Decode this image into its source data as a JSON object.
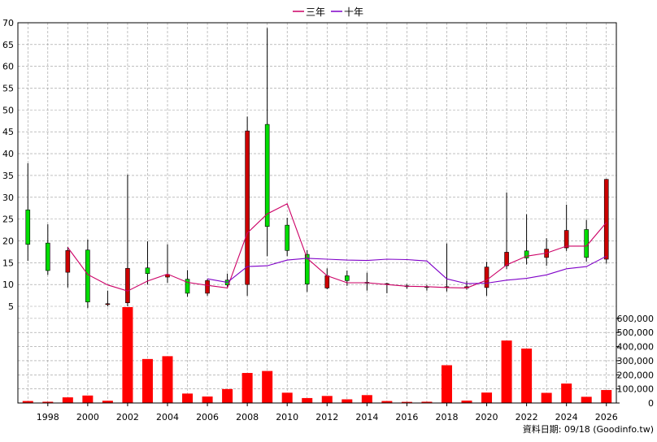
{
  "legend": {
    "ma3_label": "三年",
    "ma10_label": "十年",
    "ma3_color": "#cc0066",
    "ma10_color": "#7f00c8"
  },
  "footer": {
    "source_text": "資料日期: 09/18 (Goodinfo.tw)"
  },
  "colors": {
    "up": "#00dd00",
    "down": "#cc0000",
    "volume": "#ff0000",
    "grid": "#999999",
    "wick": "#000000"
  },
  "chart_data": [
    {
      "type": "candlestick",
      "ylim": [
        5,
        70
      ],
      "yticks": [
        5,
        10,
        15,
        20,
        25,
        30,
        35,
        40,
        45,
        50,
        55,
        60,
        65,
        70
      ],
      "xlim": [
        1996.5,
        2026.5
      ],
      "xticks": [
        1998,
        2000,
        2002,
        2004,
        2006,
        2008,
        2010,
        2012,
        2014,
        2016,
        2018,
        2020,
        2022,
        2024,
        2026
      ],
      "candles": [
        {
          "x": 1997,
          "open": 19.2,
          "high": 37.8,
          "low": 15.4,
          "close": 27.1
        },
        {
          "x": 1998,
          "open": 13.2,
          "high": 23.8,
          "low": 12.2,
          "close": 19.5
        },
        {
          "x": 1999,
          "open": 17.8,
          "high": 18.6,
          "low": 9.3,
          "close": 12.8
        },
        {
          "x": 2000,
          "open": 6.0,
          "high": 20.3,
          "low": 4.6,
          "close": 17.9
        },
        {
          "x": 2001,
          "open": 5.6,
          "high": 8.6,
          "low": 5.0,
          "close": 5.4
        },
        {
          "x": 2002,
          "open": 13.7,
          "high": 35.2,
          "low": 5.0,
          "close": 5.8
        },
        {
          "x": 2003,
          "open": 12.5,
          "high": 19.9,
          "low": 10.0,
          "close": 13.8
        },
        {
          "x": 2004,
          "open": 12.3,
          "high": 19.2,
          "low": 10.4,
          "close": 11.7
        },
        {
          "x": 2005,
          "open": 8.0,
          "high": 13.3,
          "low": 7.2,
          "close": 11.2
        },
        {
          "x": 2006,
          "open": 10.9,
          "high": 11.3,
          "low": 7.4,
          "close": 8.0
        },
        {
          "x": 2007,
          "open": 9.9,
          "high": 12.5,
          "low": 9.4,
          "close": 11.0
        },
        {
          "x": 2008,
          "open": 45.2,
          "high": 48.5,
          "low": 7.4,
          "close": 10.0
        },
        {
          "x": 2009,
          "open": 23.3,
          "high": 68.8,
          "low": 16.5,
          "close": 46.7
        },
        {
          "x": 2010,
          "open": 17.8,
          "high": 25.3,
          "low": 16.5,
          "close": 23.6
        },
        {
          "x": 2011,
          "open": 10.1,
          "high": 17.9,
          "low": 8.3,
          "close": 16.9
        },
        {
          "x": 2012,
          "open": 12.0,
          "high": 13.7,
          "low": 8.9,
          "close": 9.2
        },
        {
          "x": 2013,
          "open": 10.9,
          "high": 13.2,
          "low": 9.7,
          "close": 12.0
        },
        {
          "x": 2014,
          "open": 10.5,
          "high": 12.7,
          "low": 8.6,
          "close": 10.3
        },
        {
          "x": 2015,
          "open": 10.2,
          "high": 10.4,
          "low": 8.0,
          "close": 10.0
        },
        {
          "x": 2016,
          "open": 9.5,
          "high": 10.1,
          "low": 9.0,
          "close": 9.7
        },
        {
          "x": 2017,
          "open": 9.4,
          "high": 9.9,
          "low": 8.6,
          "close": 9.5
        },
        {
          "x": 2018,
          "open": 9.5,
          "high": 19.4,
          "low": 8.4,
          "close": 9.3
        },
        {
          "x": 2019,
          "open": 9.5,
          "high": 10.8,
          "low": 8.8,
          "close": 9.2
        },
        {
          "x": 2020,
          "open": 14.0,
          "high": 15.2,
          "low": 7.4,
          "close": 9.3
        },
        {
          "x": 2021,
          "open": 17.4,
          "high": 31.1,
          "low": 13.5,
          "close": 14.3
        },
        {
          "x": 2022,
          "open": 16.1,
          "high": 26.1,
          "low": 14.6,
          "close": 17.7
        },
        {
          "x": 2023,
          "open": 18.1,
          "high": 20.6,
          "low": 14.3,
          "close": 16.2
        },
        {
          "x": 2024,
          "open": 22.4,
          "high": 28.3,
          "low": 17.7,
          "close": 18.4
        },
        {
          "x": 2025,
          "open": 16.2,
          "high": 24.8,
          "low": 15.2,
          "close": 22.6
        },
        {
          "x": 2026,
          "open": 34.1,
          "high": 34.2,
          "low": 14.8,
          "close": 15.8
        }
      ],
      "series": [
        {
          "name": "三年",
          "x": [
            1999,
            2000,
            2001,
            2002,
            2003,
            2004,
            2005,
            2006,
            2007,
            2008,
            2009,
            2010,
            2011,
            2012,
            2013,
            2014,
            2015,
            2016,
            2017,
            2018,
            2019,
            2020,
            2021,
            2022,
            2023,
            2024,
            2025,
            2026
          ],
          "values": [
            18.5,
            12.3,
            9.9,
            8.5,
            10.8,
            12.4,
            10.5,
            9.8,
            9.2,
            21.8,
            26.2,
            28.5,
            16.0,
            12.0,
            10.4,
            10.4,
            10.0,
            9.6,
            9.5,
            9.3,
            9.2,
            11.0,
            14.5,
            16.5,
            17.2,
            18.8,
            18.8,
            24.2
          ]
        },
        {
          "name": "十年",
          "x": [
            2006,
            2007,
            2008,
            2009,
            2010,
            2011,
            2012,
            2013,
            2014,
            2015,
            2016,
            2017,
            2018,
            2019,
            2020,
            2021,
            2022,
            2023,
            2024,
            2025,
            2026
          ],
          "values": [
            11.3,
            10.5,
            14.1,
            14.3,
            15.6,
            16.0,
            15.8,
            15.6,
            15.5,
            15.8,
            15.7,
            15.4,
            11.3,
            10.2,
            10.3,
            11.0,
            11.4,
            12.2,
            13.6,
            14.1,
            16.5
          ]
        }
      ]
    },
    {
      "type": "bar",
      "ylim": [
        0,
        680000
      ],
      "yticks": [
        0,
        100000,
        200000,
        300000,
        400000,
        500000,
        600000
      ],
      "ytick_labels": [
        "0",
        "100,000",
        "200,000",
        "300,000",
        "400,000",
        "500,000",
        "600,000"
      ],
      "x": [
        1997,
        1998,
        1999,
        2000,
        2001,
        2002,
        2003,
        2004,
        2005,
        2006,
        2007,
        2008,
        2009,
        2010,
        2011,
        2012,
        2013,
        2014,
        2015,
        2016,
        2017,
        2018,
        2019,
        2020,
        2021,
        2022,
        2023,
        2024,
        2025,
        2026
      ],
      "values": [
        14000,
        9000,
        40000,
        53000,
        16000,
        680000,
        312000,
        332000,
        67000,
        46000,
        99000,
        213000,
        227000,
        73000,
        35000,
        50000,
        26000,
        56000,
        14000,
        8000,
        9000,
        268000,
        17000,
        74000,
        443000,
        386000,
        72000,
        138000,
        44000,
        92000
      ]
    }
  ]
}
